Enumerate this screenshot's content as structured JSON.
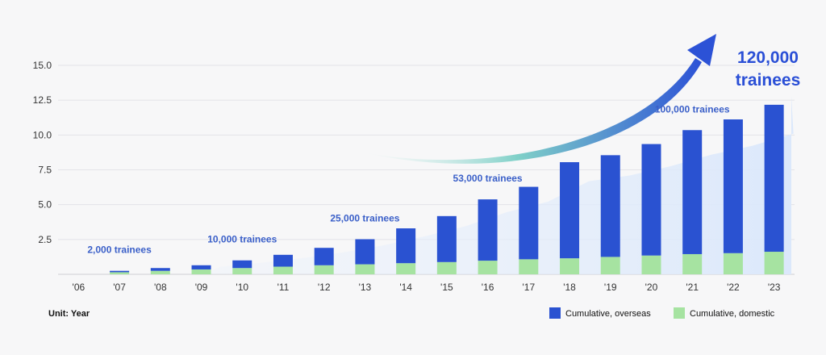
{
  "chart_data": {
    "type": "bar",
    "stacked": true,
    "categories": [
      "'06",
      "'07",
      "'08",
      "'09",
      "'10",
      "'11",
      "'12",
      "'13",
      "'14",
      "'15",
      "'16",
      "'17",
      "'18",
      "'19",
      "'20",
      "'21",
      "'22",
      "'23"
    ],
    "series": [
      {
        "name": "Cumulative, domestic",
        "color": "#a6e3a1",
        "values": [
          0,
          0.15,
          0.25,
          0.35,
          0.45,
          0.55,
          0.65,
          0.72,
          0.8,
          0.88,
          0.98,
          1.08,
          1.15,
          1.25,
          1.35,
          1.45,
          1.52,
          1.62
        ]
      },
      {
        "name": "Cumulative, overseas",
        "color": "#2a52d1",
        "values": [
          0,
          0.1,
          0.2,
          0.3,
          0.55,
          0.85,
          1.25,
          1.8,
          2.5,
          3.3,
          4.4,
          5.2,
          6.9,
          7.3,
          8.0,
          8.9,
          9.6,
          10.55
        ]
      }
    ],
    "yticks": [
      2.5,
      5.0,
      7.5,
      10.0,
      12.5,
      15.0
    ],
    "ylim": [
      0,
      15
    ],
    "grid": true,
    "annotations": [
      {
        "text": "2,000 trainees",
        "category": "'07"
      },
      {
        "text": "10,000 trainees",
        "category": "'10"
      },
      {
        "text": "25,000 trainees",
        "category": "'13"
      },
      {
        "text": "53,000 trainees",
        "category": "'16"
      },
      {
        "text": "100,000 trainees",
        "category": "'21"
      }
    ],
    "headline": [
      "120,000",
      "trainees"
    ],
    "unit_label": "Unit: Year",
    "legend_position": "bottom-right"
  }
}
